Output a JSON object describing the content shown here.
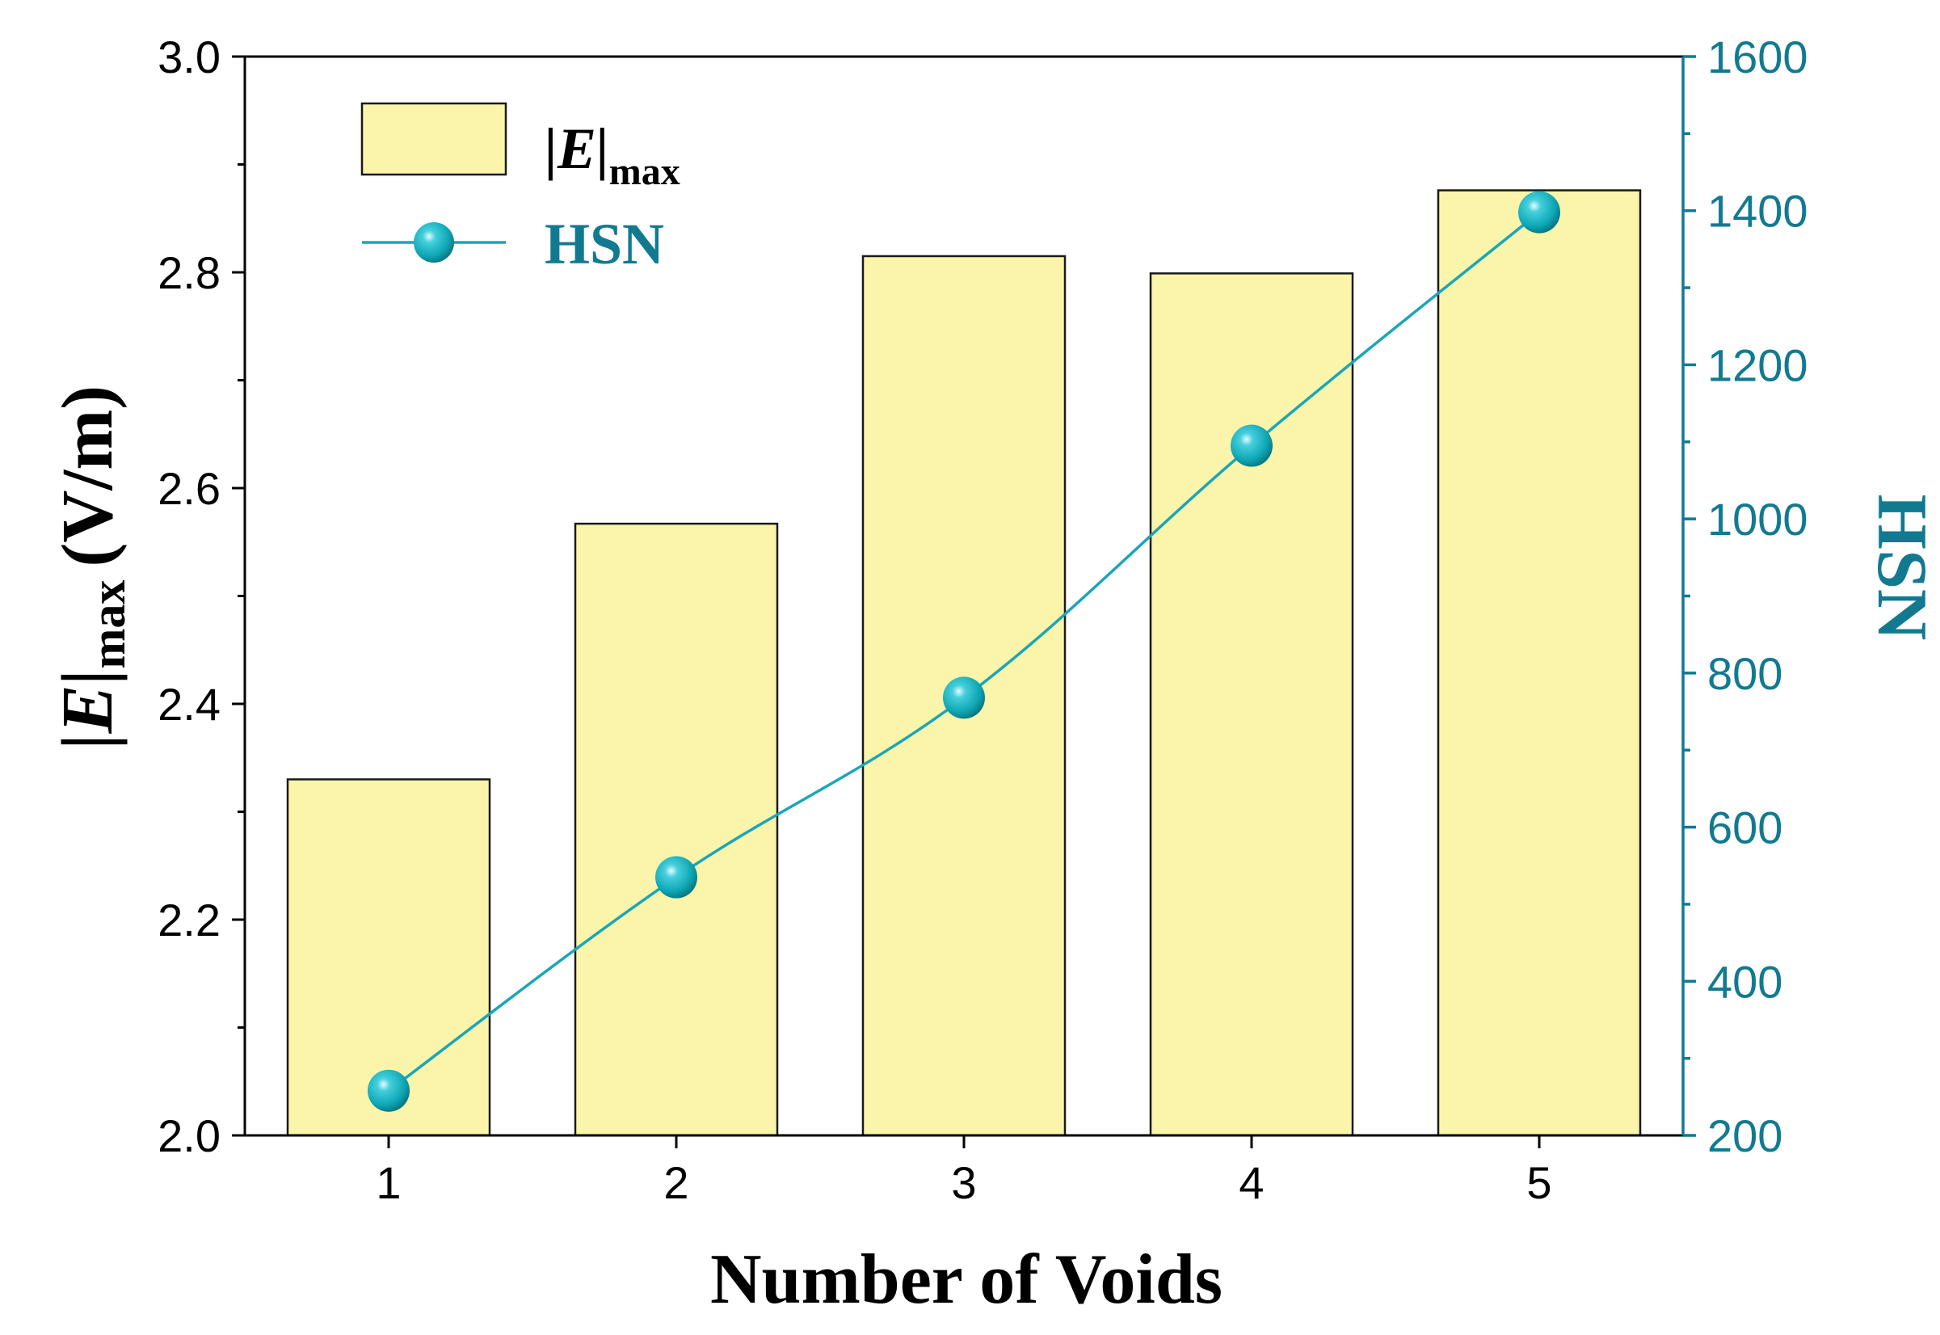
{
  "chart_data": {
    "type": "bar",
    "categories": [
      "1",
      "2",
      "3",
      "4",
      "5"
    ],
    "series": [
      {
        "name": "|E|max",
        "type": "bar",
        "axis": "left",
        "values": [
          2.33,
          2.567,
          2.815,
          2.799,
          2.876
        ]
      },
      {
        "name": "HSN",
        "type": "line",
        "axis": "right",
        "values": [
          258,
          535,
          768,
          1095,
          1398
        ]
      }
    ],
    "xlabel": "Number of Voids",
    "ylabel": {
      "main": "|E|",
      "sub": "max",
      "unit": "(V/m)"
    },
    "y2label": "HSN",
    "ylim": [
      2.0,
      3.0
    ],
    "y2lim": [
      200,
      1600
    ],
    "yticks": [
      "2.0",
      "2.2",
      "2.4",
      "2.6",
      "2.8",
      "3.0"
    ],
    "y2ticks": [
      "200",
      "400",
      "600",
      "800",
      "1000",
      "1200",
      "1400",
      "1600"
    ],
    "legend": {
      "placement": "top-left",
      "bar_entry": {
        "main": "|E|",
        "sub": "max"
      },
      "line_entry": "HSN"
    },
    "grid": false,
    "colors": {
      "bar_fill": "#faf5aa",
      "bar_stroke": "#1a1a1a",
      "line": "#1aa6b8",
      "marker": "#10a9b8",
      "right_axis": "#117a91"
    }
  }
}
